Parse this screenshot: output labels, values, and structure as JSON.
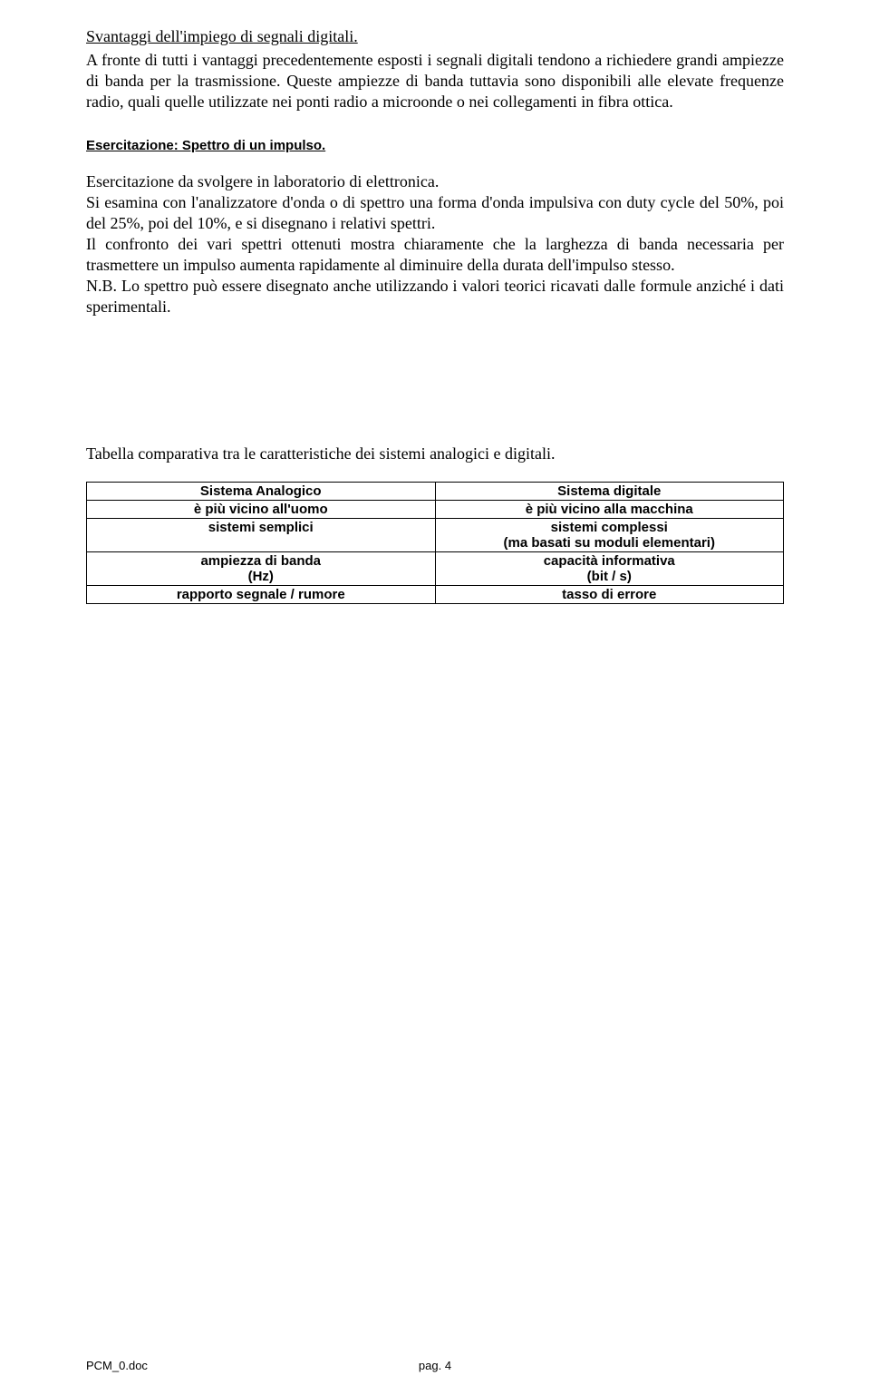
{
  "heading1": "Svantaggi dell'impiego di segnali digitali.",
  "para1": "A fronte di tutti i vantaggi precedentemente esposti i segnali digitali tendono a richiedere grandi ampiezze di banda per la trasmissione. Queste ampiezze di banda tuttavia sono disponibili alle elevate frequenze radio, quali quelle utilizzate nei ponti radio a microonde o nei collegamenti in fibra ottica.",
  "exerciseHeading": "Esercitazione: Spettro di un impulso.",
  "para2": "Esercitazione da svolgere in laboratorio di elettronica.",
  "para3": "Si esamina con l'analizzatore d'onda o di spettro una forma d'onda impulsiva con duty cycle del 50%, poi del 25%, poi del 10%, e si disegnano i relativi spettri.",
  "para4": "Il confronto dei vari spettri ottenuti mostra chiaramente che la larghezza di banda necessaria per trasmettere un impulso aumenta rapidamente al diminuire della durata dell'impulso stesso.",
  "para5": "N.B. Lo spettro può essere disegnato anche utilizzando i valori teorici ricavati dalle formule anziché i dati sperimentali.",
  "tableCaption": "Tabella comparativa tra le caratteristiche dei sistemi analogici e digitali.",
  "table": {
    "rows": [
      {
        "left": "Sistema Analogico",
        "right": "Sistema digitale",
        "bold": true
      },
      {
        "left": "è più vicino all'uomo",
        "right": "è più vicino alla macchina",
        "bold": true
      },
      {
        "left": "sistemi semplici",
        "right": "sistemi complessi\n(ma basati su moduli elementari)",
        "bold": true
      },
      {
        "left": "ampiezza di banda\n(Hz)",
        "right": "capacità informativa\n(bit / s)",
        "bold": true
      },
      {
        "left": "rapporto segnale / rumore",
        "right": "tasso di errore",
        "bold": true
      }
    ]
  },
  "footer": {
    "left": "PCM_0.doc",
    "right": "pag. 4"
  }
}
